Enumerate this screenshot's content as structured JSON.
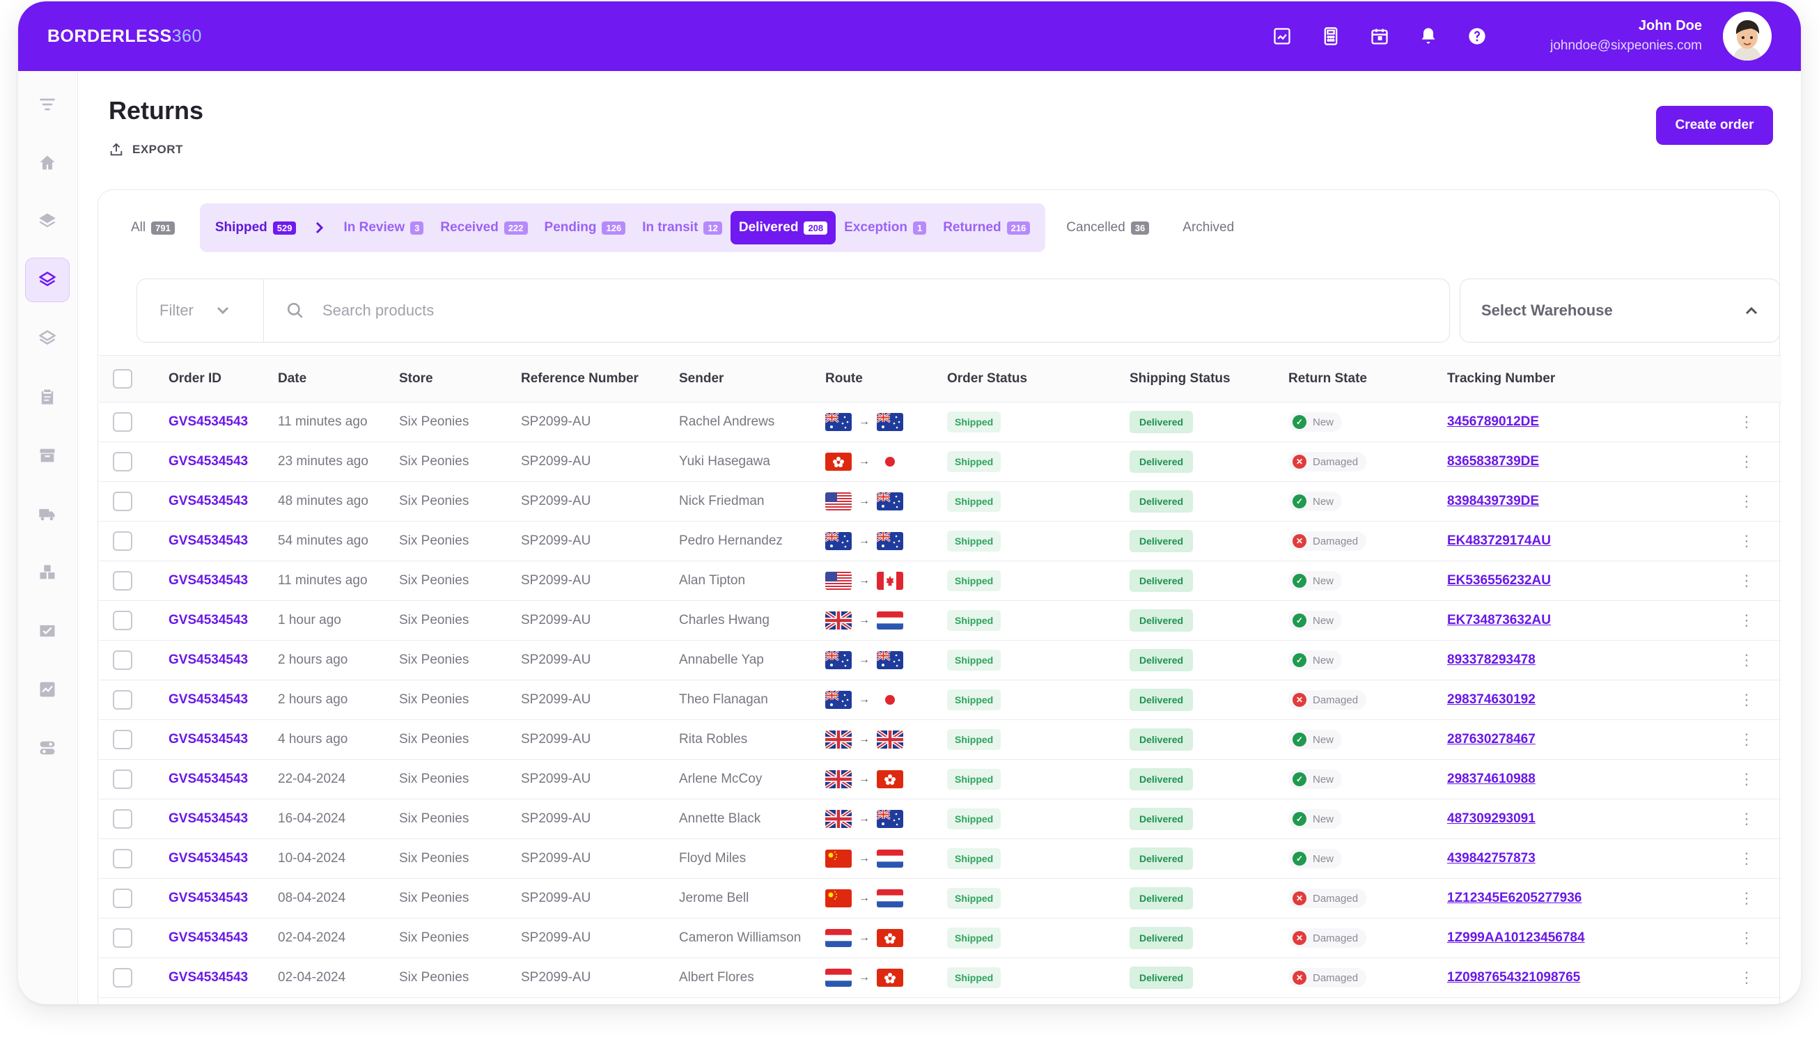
{
  "brand": {
    "name": "BORDERLESS",
    "num": "360"
  },
  "user": {
    "name": "John Doe",
    "email": "johndoe@sixpeonies.com"
  },
  "page": {
    "title": "Returns",
    "export": "EXPORT",
    "create": "Create order"
  },
  "tabs": {
    "all": {
      "label": "All",
      "count": "791"
    },
    "shipped": {
      "label": "Shipped",
      "count": "529"
    },
    "review": {
      "label": "In Review",
      "count": "3"
    },
    "received": {
      "label": "Received",
      "count": "222"
    },
    "pending": {
      "label": "Pending",
      "count": "126"
    },
    "transit": {
      "label": "In transit",
      "count": "12"
    },
    "delivered": {
      "label": "Delivered",
      "count": "208"
    },
    "exception": {
      "label": "Exception",
      "count": "1"
    },
    "returned": {
      "label": "Returned",
      "count": "216"
    },
    "cancelled": {
      "label": "Cancelled",
      "count": "36"
    },
    "archived": {
      "label": "Archived"
    }
  },
  "filter": {
    "label": "Filter",
    "search_placeholder": "Search products",
    "warehouse": "Select Warehouse"
  },
  "columns": {
    "id": "Order ID",
    "date": "Date",
    "store": "Store",
    "ref": "Reference Number",
    "sender": "Sender",
    "route": "Route",
    "order": "Order Status",
    "ship": "Shipping Status",
    "ret": "Return State",
    "track": "Tracking Number"
  },
  "rows": [
    {
      "id": "GVS4534543",
      "date": "11 minutes ago",
      "store": "Six Peonies",
      "ref": "SP2099-AU",
      "sender": "Rachel Andrews",
      "from": "au",
      "to": "au",
      "order": "Shipped",
      "ship": "Delivered",
      "ret": "New",
      "track": "3456789012DE"
    },
    {
      "id": "GVS4534543",
      "date": "23 minutes ago",
      "store": "Six Peonies",
      "ref": "SP2099-AU",
      "sender": "Yuki Hasegawa",
      "from": "hk",
      "to": "jp",
      "order": "Shipped",
      "ship": "Delivered",
      "ret": "Damaged",
      "track": "8365838739DE"
    },
    {
      "id": "GVS4534543",
      "date": "48 minutes ago",
      "store": "Six Peonies",
      "ref": "SP2099-AU",
      "sender": "Nick Friedman",
      "from": "us",
      "to": "au",
      "order": "Shipped",
      "ship": "Delivered",
      "ret": "New",
      "track": "8398439739DE"
    },
    {
      "id": "GVS4534543",
      "date": "54 minutes ago",
      "store": "Six Peonies",
      "ref": "SP2099-AU",
      "sender": "Pedro Hernandez",
      "from": "au",
      "to": "au",
      "order": "Shipped",
      "ship": "Delivered",
      "ret": "Damaged",
      "track": "EK483729174AU"
    },
    {
      "id": "GVS4534543",
      "date": "11 minutes ago",
      "store": "Six Peonies",
      "ref": "SP2099-AU",
      "sender": "Alan Tipton",
      "from": "us",
      "to": "ca",
      "order": "Shipped",
      "ship": "Delivered",
      "ret": "New",
      "track": "EK536556232AU"
    },
    {
      "id": "GVS4534543",
      "date": "1 hour ago",
      "store": "Six Peonies",
      "ref": "SP2099-AU",
      "sender": "Charles Hwang",
      "from": "gb",
      "to": "nl",
      "order": "Shipped",
      "ship": "Delivered",
      "ret": "New",
      "track": "EK734873632AU"
    },
    {
      "id": "GVS4534543",
      "date": "2 hours ago",
      "store": "Six Peonies",
      "ref": "SP2099-AU",
      "sender": "Annabelle Yap",
      "from": "au",
      "to": "au",
      "order": "Shipped",
      "ship": "Delivered",
      "ret": "New",
      "track": "893378293478"
    },
    {
      "id": "GVS4534543",
      "date": "2 hours ago",
      "store": "Six Peonies",
      "ref": "SP2099-AU",
      "sender": "Theo Flanagan",
      "from": "au",
      "to": "jp",
      "order": "Shipped",
      "ship": "Delivered",
      "ret": "Damaged",
      "track": "298374630192"
    },
    {
      "id": "GVS4534543",
      "date": "4 hours ago",
      "store": "Six Peonies",
      "ref": "SP2099-AU",
      "sender": "Rita Robles",
      "from": "gb",
      "to": "gb",
      "order": "Shipped",
      "ship": "Delivered",
      "ret": "New",
      "track": "287630278467"
    },
    {
      "id": "GVS4534543",
      "date": "22-04-2024",
      "store": "Six Peonies",
      "ref": "SP2099-AU",
      "sender": "Arlene McCoy",
      "from": "gb",
      "to": "hk",
      "order": "Shipped",
      "ship": "Delivered",
      "ret": "New",
      "track": "298374610988"
    },
    {
      "id": "GVS4534543",
      "date": "16-04-2024",
      "store": "Six Peonies",
      "ref": "SP2099-AU",
      "sender": "Annette Black",
      "from": "gb",
      "to": "au",
      "order": "Shipped",
      "ship": "Delivered",
      "ret": "New",
      "track": "487309293091"
    },
    {
      "id": "GVS4534543",
      "date": "10-04-2024",
      "store": "Six Peonies",
      "ref": "SP2099-AU",
      "sender": "Floyd Miles",
      "from": "cn",
      "to": "nl",
      "order": "Shipped",
      "ship": "Delivered",
      "ret": "New",
      "track": "439842757873"
    },
    {
      "id": "GVS4534543",
      "date": "08-04-2024",
      "store": "Six Peonies",
      "ref": "SP2099-AU",
      "sender": "Jerome Bell",
      "from": "cn",
      "to": "nl",
      "order": "Shipped",
      "ship": "Delivered",
      "ret": "Damaged",
      "track": "1Z12345E6205277936"
    },
    {
      "id": "GVS4534543",
      "date": "02-04-2024",
      "store": "Six Peonies",
      "ref": "SP2099-AU",
      "sender": "Cameron Williamson",
      "from": "nl",
      "to": "hk",
      "order": "Shipped",
      "ship": "Delivered",
      "ret": "Damaged",
      "track": "1Z999AA10123456784"
    },
    {
      "id": "GVS4534543",
      "date": "02-04-2024",
      "store": "Six Peonies",
      "ref": "SP2099-AU",
      "sender": "Albert Flores",
      "from": "nl",
      "to": "hk",
      "order": "Shipped",
      "ship": "Delivered",
      "ret": "Damaged",
      "track": "1Z0987654321098765"
    }
  ],
  "colors": {
    "brand": "#7019f0",
    "delivered_pill": "#d8f1e0",
    "new": "#1f9a4e",
    "damaged": "#e23b3b"
  }
}
